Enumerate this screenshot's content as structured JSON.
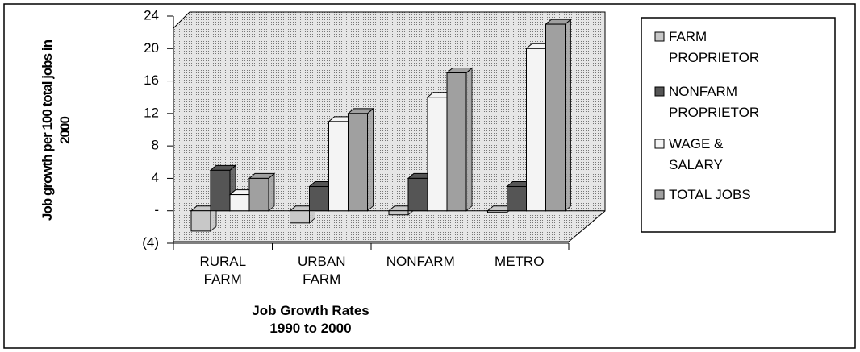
{
  "chart_data": {
    "type": "bar3d",
    "x_label": "Job Growth Rates 1990 to 2000",
    "y_label": "Job growth per 100 total jobs in 2000",
    "categories": [
      "RURAL FARM",
      "URBAN FARM",
      "NONFARM",
      "METRO"
    ],
    "series": [
      {
        "name": "FARM PROPRIETOR",
        "color": "#c8c8c8",
        "values": [
          -2.5,
          -1.5,
          -0.5,
          -0.2
        ]
      },
      {
        "name": "NONFARM PROPRIETOR",
        "color": "#555555",
        "values": [
          5,
          3,
          4,
          3
        ]
      },
      {
        "name": "WAGE & SALARY",
        "color": "#f4f4f4",
        "values": [
          2,
          11,
          14,
          20
        ]
      },
      {
        "name": "TOTAL JOBS",
        "color": "#a0a0a0",
        "values": [
          4,
          12,
          17,
          23
        ]
      }
    ],
    "ylim": [
      -4,
      24
    ],
    "yticks": [
      {
        "value": -4,
        "label": "(4)"
      },
      {
        "value": 0,
        "label": "-"
      },
      4,
      8,
      12,
      16,
      20,
      24
    ],
    "legend": "right"
  }
}
